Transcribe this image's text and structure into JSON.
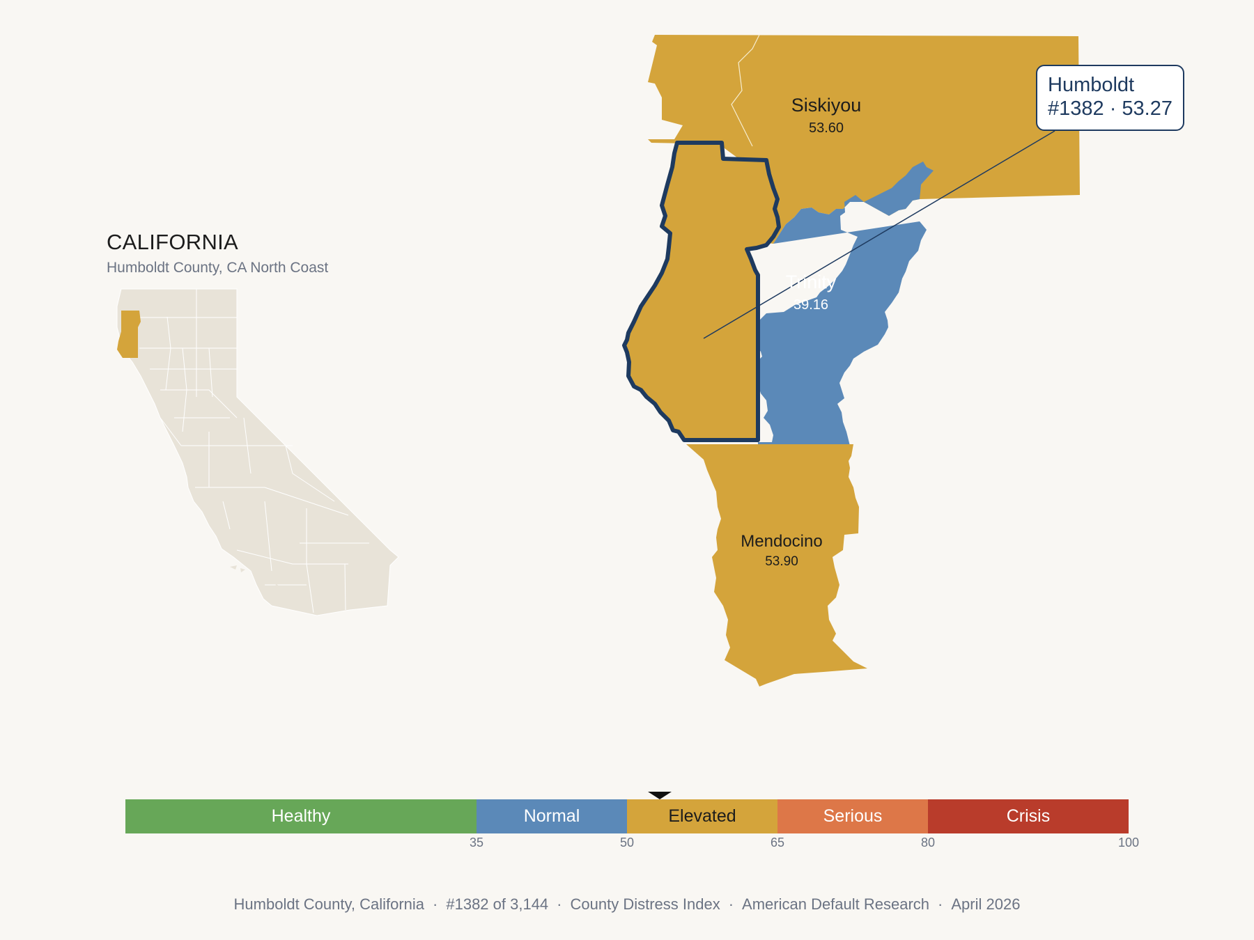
{
  "state": {
    "title": "CALIFORNIA",
    "subtitle": "Humboldt County, CA North Coast"
  },
  "counties": [
    {
      "name": "Siskiyou",
      "value": "53.60",
      "category": "Elevated"
    },
    {
      "name": "Trinity",
      "value": "39.16",
      "category": "Normal"
    },
    {
      "name": "Mendocino",
      "value": "53.90",
      "category": "Elevated"
    },
    {
      "name": "Humboldt",
      "value": "53.27",
      "category": "Elevated",
      "selected": true
    }
  ],
  "callout": {
    "line1": "Humboldt",
    "line2": "#1382 · 53.27"
  },
  "legend": {
    "categories": [
      {
        "label": "Healthy",
        "from": 0,
        "to": 35,
        "color": "#67a758"
      },
      {
        "label": "Normal",
        "from": 35,
        "to": 50,
        "color": "#5b89b8"
      },
      {
        "label": "Elevated",
        "from": 50,
        "to": 65,
        "color": "#d4a43b"
      },
      {
        "label": "Serious",
        "from": 65,
        "to": 80,
        "color": "#dd7748"
      },
      {
        "label": "Crisis",
        "from": 80,
        "to": 100,
        "color": "#b93c2b"
      }
    ],
    "ticks": [
      "35",
      "50",
      "65",
      "80",
      "100"
    ],
    "marker_value": 53.27
  },
  "footer": {
    "county": "Humboldt County, California",
    "rank": "#1382 of 3,144",
    "index": "County Distress Index",
    "source": "American Default Research",
    "date": "April 2026"
  },
  "colors": {
    "elevated": "#d4a43b",
    "normal": "#5b89b8",
    "highlight_outline": "#1e3a5f",
    "state_fill": "#e8e3d8",
    "background": "#f9f7f3"
  }
}
